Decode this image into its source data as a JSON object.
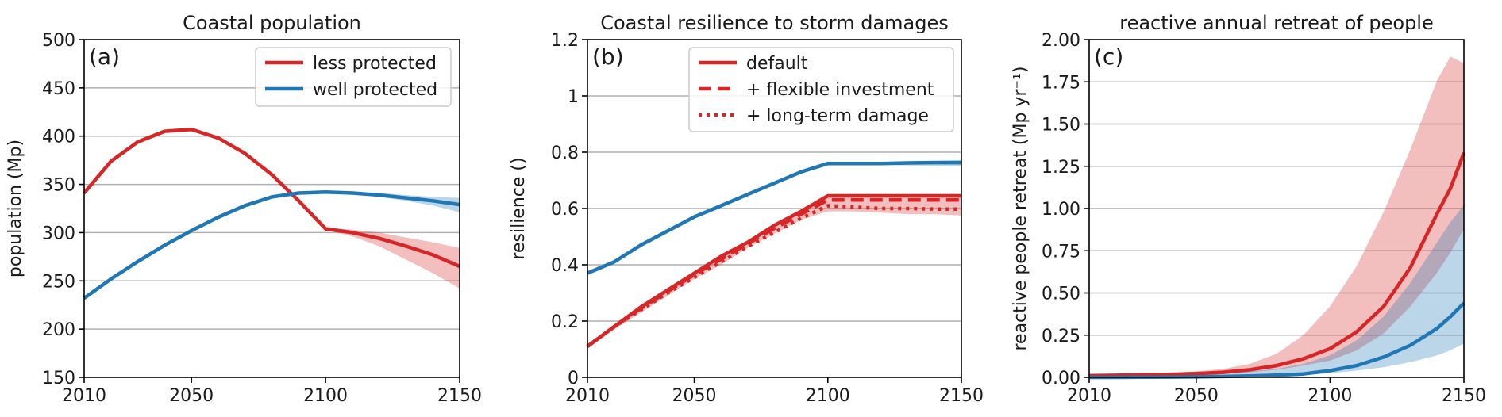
{
  "colors": {
    "red": "#d62728",
    "blue": "#1f77b4",
    "grid": "#b0b0b0",
    "axis": "#000000"
  },
  "chart_data": [
    {
      "type": "line",
      "panel_label": "(a)",
      "title": "Coastal population",
      "xlabel": "",
      "ylabel": "population (Mp)",
      "xlim": [
        2010,
        2150
      ],
      "ylim": [
        150,
        500
      ],
      "xticks": [
        2010,
        2050,
        2100,
        2150
      ],
      "yticks": [
        150,
        200,
        250,
        300,
        350,
        400,
        450,
        500
      ],
      "grid": "horizontal",
      "legend_position": "top-right",
      "legend": [
        {
          "label": "less protected",
          "color": "red",
          "style": "solid"
        },
        {
          "label": "well protected",
          "color": "blue",
          "style": "solid"
        }
      ],
      "series": [
        {
          "name": "less protected",
          "color": "red",
          "style": "solid",
          "x": [
            2010,
            2020,
            2030,
            2040,
            2050,
            2060,
            2070,
            2080,
            2090,
            2100,
            2110,
            2120,
            2130,
            2140,
            2150
          ],
          "y": [
            341,
            374,
            394,
            405,
            407,
            398,
            382,
            360,
            333,
            304,
            300,
            294,
            286,
            277,
            265
          ],
          "band_low": [
            341,
            374,
            394,
            405,
            407,
            398,
            382,
            360,
            333,
            303,
            296,
            286,
            272,
            258,
            242
          ],
          "band_high": [
            341,
            374,
            394,
            405,
            407,
            398,
            382,
            360,
            333,
            305,
            303,
            300,
            295,
            290,
            284
          ]
        },
        {
          "name": "well protected",
          "color": "blue",
          "style": "solid",
          "x": [
            2010,
            2020,
            2030,
            2040,
            2050,
            2060,
            2070,
            2080,
            2090,
            2100,
            2110,
            2120,
            2130,
            2140,
            2150
          ],
          "y": [
            232,
            252,
            270,
            287,
            302,
            316,
            328,
            337,
            341,
            342,
            341,
            339,
            336,
            333,
            329
          ],
          "band_low": [
            232,
            252,
            270,
            287,
            302,
            316,
            328,
            337,
            341,
            342,
            340,
            337,
            333,
            328,
            321
          ],
          "band_high": [
            232,
            252,
            270,
            287,
            302,
            316,
            328,
            337,
            341,
            342,
            342,
            341,
            339,
            337,
            336
          ]
        }
      ]
    },
    {
      "type": "line",
      "panel_label": "(b)",
      "title": "Coastal resilience to storm damages",
      "xlabel": "",
      "ylabel": "resilience ()",
      "xlim": [
        2010,
        2150
      ],
      "ylim": [
        0.0,
        1.2
      ],
      "xticks": [
        2010,
        2050,
        2100,
        2150
      ],
      "yticks": [
        0.0,
        0.2,
        0.4,
        0.6,
        0.8,
        1.0,
        1.2
      ],
      "grid": "horizontal",
      "legend_position": "top-right",
      "legend": [
        {
          "label": "default",
          "color": "red",
          "style": "solid"
        },
        {
          "label": "+ flexible investment",
          "color": "red",
          "style": "dashed"
        },
        {
          "label": "+ long-term damage",
          "color": "red",
          "style": "dotted"
        }
      ],
      "series": [
        {
          "name": "",
          "color": "red",
          "style": "solid",
          "x": [
            2010,
            2020,
            2030,
            2040,
            2050,
            2060,
            2070,
            2080,
            2090,
            2100,
            2110,
            2120,
            2130,
            2140,
            2150
          ],
          "y": [
            0.11,
            0.18,
            0.25,
            0.31,
            0.37,
            0.43,
            0.48,
            0.54,
            0.59,
            0.645,
            0.645,
            0.645,
            0.645,
            0.645,
            0.645
          ],
          "band_low": [
            0.11,
            0.17,
            0.23,
            0.29,
            0.35,
            0.4,
            0.46,
            0.51,
            0.56,
            0.59,
            0.59,
            0.585,
            0.58,
            0.58,
            0.575
          ],
          "band_high": [
            0.11,
            0.18,
            0.25,
            0.31,
            0.37,
            0.43,
            0.48,
            0.54,
            0.59,
            0.645,
            0.645,
            0.645,
            0.645,
            0.645,
            0.645
          ]
        },
        {
          "name": "",
          "color": "red",
          "style": "dashed",
          "x": [
            2010,
            2020,
            2030,
            2040,
            2050,
            2060,
            2070,
            2080,
            2090,
            2100,
            2110,
            2120,
            2130,
            2140,
            2150
          ],
          "y": [
            0.11,
            0.18,
            0.245,
            0.305,
            0.365,
            0.42,
            0.475,
            0.53,
            0.58,
            0.63,
            0.63,
            0.63,
            0.63,
            0.63,
            0.63
          ]
        },
        {
          "name": "",
          "color": "red",
          "style": "dotted",
          "x": [
            2010,
            2020,
            2030,
            2040,
            2050,
            2060,
            2070,
            2080,
            2090,
            2100,
            2110,
            2120,
            2130,
            2140,
            2150
          ],
          "y": [
            0.11,
            0.18,
            0.24,
            0.3,
            0.355,
            0.41,
            0.465,
            0.515,
            0.565,
            0.61,
            0.605,
            0.6,
            0.6,
            0.598,
            0.598
          ]
        },
        {
          "name": "",
          "color": "blue",
          "style": "solid",
          "x": [
            2010,
            2020,
            2030,
            2040,
            2050,
            2060,
            2070,
            2080,
            2090,
            2100,
            2110,
            2120,
            2130,
            2140,
            2150
          ],
          "y": [
            0.37,
            0.41,
            0.47,
            0.52,
            0.57,
            0.61,
            0.65,
            0.69,
            0.73,
            0.76,
            0.76,
            0.76,
            0.762,
            0.763,
            0.763
          ],
          "band_low": [
            0.37,
            0.41,
            0.47,
            0.52,
            0.57,
            0.61,
            0.65,
            0.69,
            0.73,
            0.76,
            0.758,
            0.755,
            0.753,
            0.752,
            0.75
          ],
          "band_high": [
            0.37,
            0.41,
            0.47,
            0.52,
            0.57,
            0.61,
            0.65,
            0.69,
            0.73,
            0.76,
            0.762,
            0.765,
            0.768,
            0.77,
            0.772
          ]
        }
      ]
    },
    {
      "type": "line",
      "panel_label": "(c)",
      "title": "reactive annual retreat of people",
      "xlabel": "",
      "ylabel": "reactive people retreat (Mp yr⁻¹)",
      "xlim": [
        2010,
        2150
      ],
      "ylim": [
        0.0,
        2.0
      ],
      "xticks": [
        2010,
        2050,
        2100,
        2150
      ],
      "yticks": [
        0.0,
        0.25,
        0.5,
        0.75,
        1.0,
        1.25,
        1.5,
        1.75,
        2.0
      ],
      "ytick_labels": [
        "0.00",
        "0.25",
        "0.50",
        "0.75",
        "1.00",
        "1.25",
        "1.50",
        "1.75",
        "2.00"
      ],
      "grid": "horizontal",
      "series": [
        {
          "name": "",
          "color": "red",
          "style": "solid",
          "x": [
            2010,
            2020,
            2030,
            2040,
            2050,
            2060,
            2070,
            2080,
            2090,
            2100,
            2110,
            2120,
            2130,
            2140,
            2145,
            2150
          ],
          "y": [
            0.01,
            0.012,
            0.015,
            0.018,
            0.022,
            0.03,
            0.045,
            0.07,
            0.11,
            0.17,
            0.27,
            0.42,
            0.65,
            0.97,
            1.12,
            1.33
          ],
          "band_low": [
            0.005,
            0.007,
            0.009,
            0.011,
            0.014,
            0.02,
            0.03,
            0.045,
            0.07,
            0.1,
            0.16,
            0.26,
            0.42,
            0.62,
            0.74,
            0.88
          ],
          "band_high": [
            0.015,
            0.018,
            0.022,
            0.027,
            0.035,
            0.05,
            0.08,
            0.14,
            0.25,
            0.42,
            0.66,
            0.98,
            1.35,
            1.76,
            1.9,
            1.86
          ]
        },
        {
          "name": "",
          "color": "blue",
          "style": "solid",
          "x": [
            2010,
            2020,
            2030,
            2040,
            2050,
            2060,
            2070,
            2080,
            2090,
            2100,
            2110,
            2120,
            2130,
            2140,
            2145,
            2150
          ],
          "y": [
            0.0,
            0.0,
            0.001,
            0.002,
            0.003,
            0.005,
            0.008,
            0.013,
            0.02,
            0.04,
            0.07,
            0.12,
            0.19,
            0.29,
            0.36,
            0.44
          ],
          "band_low": [
            0.0,
            0.0,
            0.0,
            0.001,
            0.002,
            0.003,
            0.005,
            0.008,
            0.013,
            0.025,
            0.04,
            0.06,
            0.09,
            0.13,
            0.16,
            0.2
          ],
          "band_high": [
            0.01,
            0.01,
            0.012,
            0.014,
            0.018,
            0.025,
            0.035,
            0.05,
            0.08,
            0.13,
            0.22,
            0.36,
            0.56,
            0.8,
            0.92,
            1.02
          ]
        }
      ]
    }
  ]
}
